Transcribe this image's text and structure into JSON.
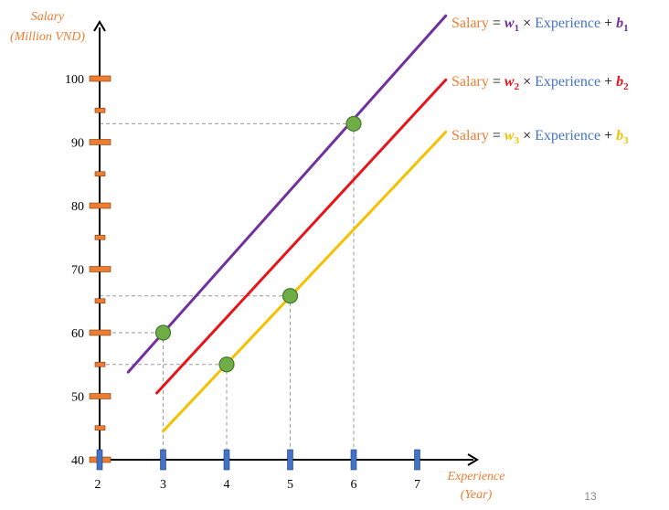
{
  "chart_data": {
    "type": "line",
    "ylabel": [
      "Salary",
      "(Million VND)"
    ],
    "xlabel": [
      "Experience",
      "(Year)"
    ],
    "xlim": [
      2,
      7
    ],
    "ylim": [
      40,
      100
    ],
    "x_ticks": [
      2,
      3,
      4,
      5,
      6,
      7
    ],
    "y_ticks": [
      40,
      50,
      60,
      70,
      80,
      90,
      100
    ],
    "y_minor_ticks": [
      45,
      55,
      65,
      75,
      85,
      95
    ],
    "series": [
      {
        "color": "#7030A0",
        "x": [
          2.45,
          7.45
        ],
        "y": [
          53.8,
          109.9
        ]
      },
      {
        "color": "#E8141A",
        "x": [
          2.9,
          7.45
        ],
        "y": [
          50.5,
          99.8
        ]
      },
      {
        "color": "#F5C000",
        "x": [
          3.0,
          7.45
        ],
        "y": [
          44.5,
          91.6
        ]
      }
    ],
    "points": [
      {
        "x": 3,
        "y": 60
      },
      {
        "x": 4,
        "y": 55
      },
      {
        "x": 5,
        "y": 65.8
      },
      {
        "x": 6,
        "y": 92.9
      }
    ],
    "equations": [
      {
        "lhs": "Salary",
        "eq": "=",
        "w": "w",
        "w_sub": "1",
        "times": "×",
        "feature": "Experience",
        "plus": "+",
        "b": "b",
        "b_sub": "1",
        "color": "#7030A0"
      },
      {
        "lhs": "Salary",
        "eq": "=",
        "w": "w",
        "w_sub": "2",
        "times": "×",
        "feature": "Experience",
        "plus": "+",
        "b": "b",
        "b_sub": "2",
        "color": "#E8141A"
      },
      {
        "lhs": "Salary",
        "eq": "=",
        "w": "w",
        "w_sub": "3",
        "times": "×",
        "feature": "Experience",
        "plus": "+",
        "b": "b",
        "b_sub": "3",
        "color": "#F5C000"
      }
    ],
    "colors": {
      "axis_label": "#ED7D31",
      "feature": "#4472C4",
      "y_tick_mark": "#ED7D31",
      "x_tick_mark": "#4472C4",
      "point": "#70AD47"
    }
  },
  "page_number": "13"
}
